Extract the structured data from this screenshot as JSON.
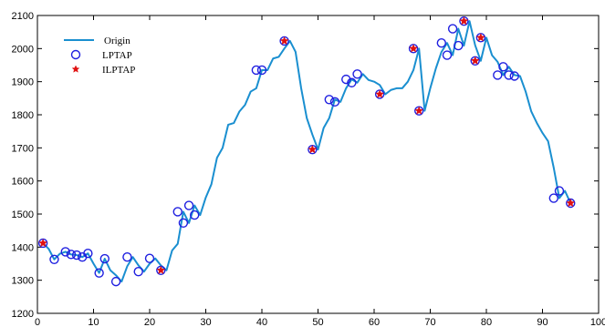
{
  "chart_data": {
    "type": "line",
    "title": "",
    "xlabel": "",
    "ylabel": "",
    "xlim": [
      0,
      100
    ],
    "ylim": [
      1200,
      2100
    ],
    "xticks": [
      0,
      10,
      20,
      30,
      40,
      50,
      60,
      70,
      80,
      90,
      100
    ],
    "yticks": [
      1200,
      1300,
      1400,
      1500,
      1600,
      1700,
      1800,
      1900,
      2000,
      2100
    ],
    "grid": false,
    "legend_position": "top-left",
    "colors": {
      "line": "#1a8fd0",
      "circle": "#1f1fe0",
      "star": "#e01010",
      "axis": "#000000"
    },
    "series": [
      {
        "name": "Origin",
        "style": "line",
        "x": [
          1,
          2,
          3,
          4,
          5,
          6,
          7,
          8,
          9,
          10,
          11,
          12,
          13,
          14,
          15,
          16,
          17,
          18,
          19,
          20,
          21,
          22,
          23,
          24,
          25,
          26,
          27,
          28,
          29,
          30,
          31,
          32,
          33,
          34,
          35,
          36,
          37,
          38,
          39,
          40,
          41,
          42,
          43,
          44,
          45,
          46,
          47,
          48,
          49,
          50,
          51,
          52,
          53,
          54,
          55,
          56,
          57,
          58,
          59,
          60,
          61,
          62,
          63,
          64,
          65,
          66,
          67,
          68,
          69,
          70,
          71,
          72,
          73,
          74,
          75,
          76,
          77,
          78,
          79,
          80,
          81,
          82,
          83,
          84,
          85,
          86,
          87,
          88,
          89,
          90,
          91,
          92,
          93,
          94,
          95
        ],
        "y": [
          1412,
          1395,
          1363,
          1380,
          1386,
          1378,
          1376,
          1370,
          1381,
          1350,
          1322,
          1365,
          1330,
          1315,
          1296,
          1342,
          1370,
          1345,
          1326,
          1350,
          1366,
          1345,
          1330,
          1390,
          1410,
          1507,
          1473,
          1526,
          1497,
          1550,
          1590,
          1670,
          1700,
          1770,
          1775,
          1810,
          1830,
          1870,
          1880,
          1935,
          1935,
          1970,
          1975,
          2000,
          2023,
          1990,
          1880,
          1790,
          1740,
          1695,
          1760,
          1790,
          1846,
          1839,
          1880,
          1907,
          1897,
          1923,
          1905,
          1900,
          1890,
          1862,
          1875,
          1880,
          1880,
          1900,
          1935,
          2000,
          1812,
          1880,
          1940,
          1990,
          2017,
          1980,
          2060,
          2009,
          2083,
          2010,
          1963,
          2033,
          1980,
          1960,
          1920,
          1945,
          1920,
          1917,
          1870,
          1810,
          1775,
          1745,
          1720,
          1640,
          1548,
          1570,
          1533
        ]
      },
      {
        "name": "LPTAP",
        "style": "circle",
        "x": [
          1,
          3,
          5,
          6,
          7,
          8,
          9,
          11,
          12,
          14,
          16,
          18,
          20,
          22,
          25,
          26,
          27,
          28,
          39,
          40,
          44,
          49,
          52,
          53,
          55,
          56,
          57,
          61,
          67,
          68,
          72,
          73,
          74,
          75,
          76,
          78,
          79,
          82,
          83,
          84,
          85,
          92,
          93,
          95
        ],
        "y": [
          1412,
          1363,
          1386,
          1378,
          1376,
          1370,
          1381,
          1322,
          1365,
          1296,
          1370,
          1326,
          1366,
          1330,
          1507,
          1473,
          1526,
          1497,
          1935,
          1935,
          2023,
          1695,
          1846,
          1839,
          1907,
          1897,
          1923,
          1862,
          2000,
          1812,
          2017,
          1980,
          2060,
          2009,
          2083,
          1963,
          2033,
          1920,
          1945,
          1920,
          1917,
          1548,
          1570,
          1533
        ]
      },
      {
        "name": "ILPTAP",
        "style": "star",
        "x": [
          1,
          22,
          44,
          49,
          61,
          67,
          68,
          76,
          78,
          79,
          95
        ],
        "y": [
          1412,
          1330,
          2023,
          1695,
          1862,
          2000,
          1812,
          2083,
          1963,
          2033,
          1533
        ]
      }
    ]
  }
}
